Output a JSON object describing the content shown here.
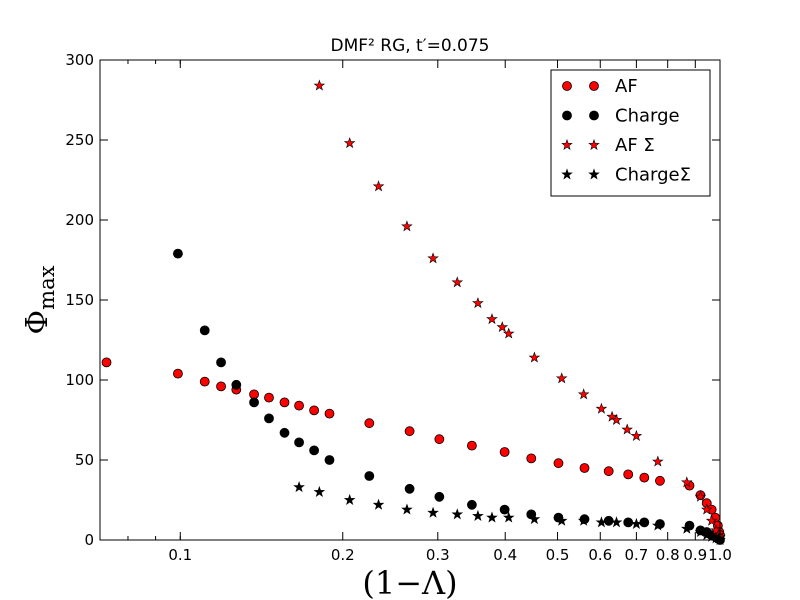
{
  "chart_data": {
    "type": "scatter",
    "title": "DMF² RG, t′=0.075",
    "xlabel": "(1−Λ)",
    "ylabel": "Φ",
    "ylabel_sub": "max",
    "xscale": "log",
    "xlim": [
      0.071,
      1.0
    ],
    "ylim": [
      0,
      300
    ],
    "x_ticks": [
      0.1,
      0.2,
      0.3,
      0.4,
      0.5,
      0.6,
      0.7,
      0.8,
      0.9,
      1.0
    ],
    "x_tick_labels": [
      "0.1",
      "0.2",
      "0.3",
      "0.4",
      "0.5",
      "0.6",
      "0.7",
      "0.8",
      "0.9",
      "1.0"
    ],
    "y_ticks": [
      0,
      50,
      100,
      150,
      200,
      250,
      300
    ],
    "y_tick_labels": [
      "0",
      "50",
      "100",
      "150",
      "200",
      "250",
      "300"
    ],
    "grid": false,
    "legend_position": "top-right",
    "series": [
      {
        "name": "AF",
        "marker": "circle",
        "color": "#ff0000",
        "points": [
          [
            0.073,
            111
          ],
          [
            0.099,
            104
          ],
          [
            0.111,
            99
          ],
          [
            0.119,
            96
          ],
          [
            0.127,
            94
          ],
          [
            0.137,
            91
          ],
          [
            0.146,
            89
          ],
          [
            0.156,
            86
          ],
          [
            0.166,
            84
          ],
          [
            0.177,
            81
          ],
          [
            0.189,
            79
          ],
          [
            0.224,
            73
          ],
          [
            0.266,
            68
          ],
          [
            0.302,
            63
          ],
          [
            0.347,
            59
          ],
          [
            0.399,
            55
          ],
          [
            0.447,
            51
          ],
          [
            0.502,
            48
          ],
          [
            0.561,
            45
          ],
          [
            0.622,
            43
          ],
          [
            0.676,
            41
          ],
          [
            0.724,
            39
          ],
          [
            0.774,
            37
          ],
          [
            0.878,
            34
          ],
          [
            0.92,
            28
          ],
          [
            0.945,
            23
          ],
          [
            0.965,
            19
          ],
          [
            0.98,
            14
          ],
          [
            0.991,
            9
          ],
          [
            0.997,
            5
          ],
          [
            1.0,
            3
          ]
        ]
      },
      {
        "name": "Charge",
        "marker": "circle",
        "color": "#000000",
        "points": [
          [
            0.099,
            179
          ],
          [
            0.111,
            131
          ],
          [
            0.119,
            111
          ],
          [
            0.127,
            97
          ],
          [
            0.137,
            86
          ],
          [
            0.146,
            76
          ],
          [
            0.156,
            67
          ],
          [
            0.166,
            61
          ],
          [
            0.177,
            56
          ],
          [
            0.189,
            50
          ],
          [
            0.224,
            40
          ],
          [
            0.266,
            32
          ],
          [
            0.302,
            27
          ],
          [
            0.347,
            22
          ],
          [
            0.399,
            19
          ],
          [
            0.447,
            16
          ],
          [
            0.502,
            14
          ],
          [
            0.561,
            13
          ],
          [
            0.622,
            12
          ],
          [
            0.676,
            11
          ],
          [
            0.724,
            11
          ],
          [
            0.774,
            10
          ],
          [
            0.878,
            9
          ],
          [
            0.92,
            6
          ],
          [
            0.945,
            5
          ],
          [
            0.965,
            3
          ],
          [
            0.98,
            2
          ],
          [
            0.991,
            1
          ],
          [
            0.997,
            1
          ],
          [
            1.0,
            0
          ]
        ]
      },
      {
        "name": "AF Σ",
        "marker": "star",
        "color": "#ff0000",
        "points": [
          [
            0.181,
            284
          ],
          [
            0.206,
            248
          ],
          [
            0.233,
            221
          ],
          [
            0.263,
            196
          ],
          [
            0.294,
            176
          ],
          [
            0.326,
            161
          ],
          [
            0.356,
            148
          ],
          [
            0.378,
            138
          ],
          [
            0.395,
            133
          ],
          [
            0.406,
            129
          ],
          [
            0.453,
            114
          ],
          [
            0.509,
            101
          ],
          [
            0.559,
            91
          ],
          [
            0.603,
            82
          ],
          [
            0.631,
            77
          ],
          [
            0.643,
            75
          ],
          [
            0.673,
            69
          ],
          [
            0.7,
            65
          ],
          [
            0.767,
            49
          ],
          [
            0.868,
            36
          ],
          [
            0.92,
            27
          ],
          [
            0.945,
            19
          ],
          [
            0.965,
            12
          ],
          [
            0.983,
            6
          ],
          [
            0.993,
            3
          ],
          [
            1.0,
            2
          ]
        ]
      },
      {
        "name": "ChargeΣ",
        "marker": "star",
        "color": "#000000",
        "points": [
          [
            0.166,
            33
          ],
          [
            0.181,
            30
          ],
          [
            0.206,
            25
          ],
          [
            0.233,
            22
          ],
          [
            0.263,
            19
          ],
          [
            0.294,
            17
          ],
          [
            0.326,
            16
          ],
          [
            0.356,
            15
          ],
          [
            0.378,
            14
          ],
          [
            0.406,
            14
          ],
          [
            0.453,
            13
          ],
          [
            0.509,
            12
          ],
          [
            0.559,
            12
          ],
          [
            0.603,
            11
          ],
          [
            0.643,
            11
          ],
          [
            0.7,
            10
          ],
          [
            0.767,
            9
          ],
          [
            0.868,
            7
          ],
          [
            0.92,
            5
          ],
          [
            0.945,
            3
          ],
          [
            0.965,
            2
          ],
          [
            0.983,
            1
          ],
          [
            0.993,
            1
          ],
          [
            1.0,
            0
          ]
        ]
      }
    ]
  }
}
